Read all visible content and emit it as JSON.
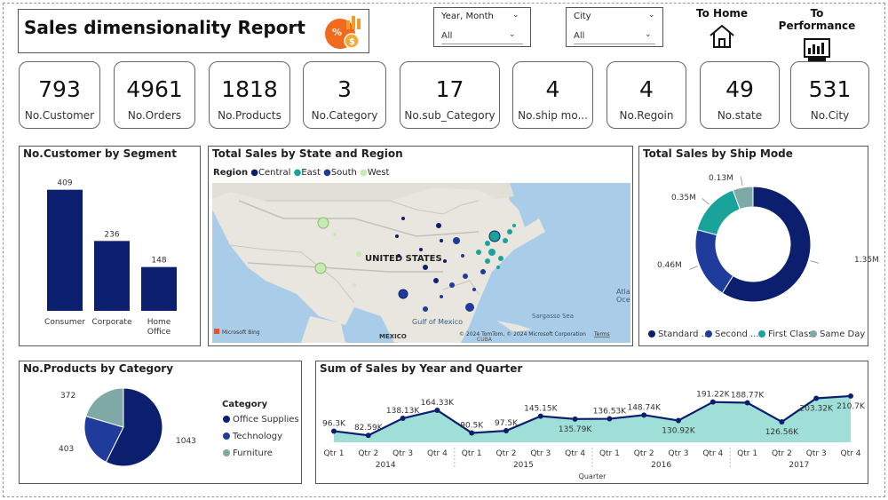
{
  "header": {
    "title": "Sales dimensionality Report",
    "logo_icon": "sales-analytics-icon",
    "slicers": [
      {
        "label": "Year, Month",
        "value": "All"
      },
      {
        "label": "City",
        "value": "All"
      }
    ],
    "nav": [
      {
        "label": "To Home",
        "icon": "home-icon"
      },
      {
        "label": "To Performance",
        "icon": "dashboard-icon"
      }
    ]
  },
  "kpis": [
    {
      "value": "793",
      "label": "No.Customer"
    },
    {
      "value": "4961",
      "label": "No.Orders"
    },
    {
      "value": "1818",
      "label": "No.Products"
    },
    {
      "value": "3",
      "label": "No.Category"
    },
    {
      "value": "17",
      "label": "No.sub_Category"
    },
    {
      "value": "4",
      "label": "No.ship mo..."
    },
    {
      "value": "4",
      "label": "No.Regoin"
    },
    {
      "value": "49",
      "label": "No.state"
    },
    {
      "value": "531",
      "label": "No.City"
    }
  ],
  "colors": {
    "navy": "#0c1f6e",
    "blue": "#1f3b9c",
    "teal": "#1aa39a",
    "gray_teal": "#7fa9a6",
    "light_teal": "#8fd9d0",
    "light_green": "#c8eab0"
  },
  "chart_data": [
    {
      "type": "bar",
      "title": "No.Customer by Segment",
      "categories": [
        "Consumer",
        "Corporate",
        "Home Office"
      ],
      "values": [
        409,
        236,
        148
      ],
      "data_labels": [
        "409",
        "236",
        "148"
      ],
      "ylim": [
        0,
        420
      ]
    },
    {
      "type": "pie",
      "title": "Total Sales by Ship Mode",
      "donut": true,
      "labels": [
        "Standard ...",
        "Second ...",
        "First Class",
        "Same Day"
      ],
      "values": [
        1.35,
        0.46,
        0.35,
        0.13
      ],
      "data_labels": [
        "1.35M",
        "0.46M",
        "0.35M",
        "0.13M"
      ],
      "legend": "bottom"
    },
    {
      "type": "pie",
      "title": "No.Products by Category",
      "legend_title": "Category",
      "labels": [
        "Office Supplies",
        "Technology",
        "Furniture"
      ],
      "values": [
        1043,
        403,
        372
      ],
      "data_labels": [
        "1043",
        "403",
        "372"
      ],
      "legend": "right"
    },
    {
      "type": "area",
      "title": "Sum of Sales by Year and Quarter",
      "xlabel": "Quarter",
      "quarters": [
        "Qtr 1",
        "Qtr 2",
        "Qtr 3",
        "Qtr 4",
        "Qtr 1",
        "Qtr 2",
        "Qtr 3",
        "Qtr 4",
        "Qtr 1",
        "Qtr 2",
        "Qtr 3",
        "Qtr 4",
        "Qtr 1",
        "Qtr 2",
        "Qtr 3",
        "Qtr 4"
      ],
      "years": [
        "2014",
        "2015",
        "2016",
        "2017"
      ],
      "values": [
        96.3,
        82.59,
        138.13,
        164.33,
        90.5,
        97.5,
        145.15,
        135.79,
        136.53,
        148.74,
        130.92,
        191.22,
        188.77,
        126.56,
        203.32,
        210.7
      ],
      "data_labels": [
        "96.3K",
        "82.59K",
        "138.13K",
        "164.33K",
        "90.5K",
        "97.5K",
        "145.15K",
        "135.79K",
        "136.53K",
        "148.74K",
        "130.92K",
        "191.22K",
        "188.77K",
        "126.56K",
        "203.32K",
        "210.7K"
      ]
    }
  ],
  "map": {
    "title": "Total Sales by State and Region",
    "legend_title": "Region",
    "regions": [
      "Central",
      "East",
      "South",
      "West"
    ],
    "labels": {
      "country": "UNITED STATES",
      "gulf": "Gulf of Mexico",
      "mexico": "MEXICO",
      "cuba": "CUBA",
      "sargasso": "Sargasso Sea",
      "atlantic": "Atla",
      "atlantic2": "Oce",
      "bing": "Microsoft Bing",
      "copyright": "© 2024 TomTom, © 2024 Microsoft Corporation",
      "terms": "Terms"
    }
  }
}
